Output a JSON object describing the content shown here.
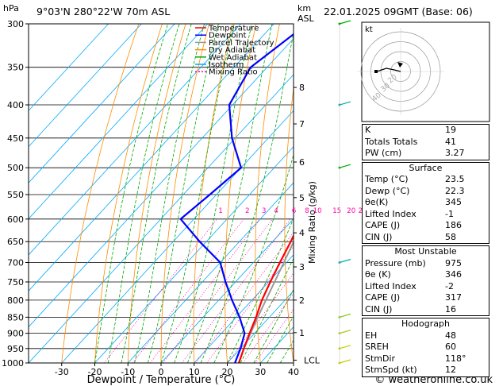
{
  "header": {
    "hpa_label": "hPa",
    "location": "9°03'N  280°22'W  70m  ASL",
    "km_label": "km",
    "asl_label": "ASL",
    "datetime": "22.01.2025  09GMT  (Base: 06)"
  },
  "legend": {
    "items": [
      {
        "label": "Temperature",
        "color": "#ff0000",
        "style": "solid"
      },
      {
        "label": "Dewpoint",
        "color": "#0000ff",
        "style": "solid"
      },
      {
        "label": "Parcel Trajectory",
        "color": "#999999",
        "style": "solid"
      },
      {
        "label": "Dry Adiabat",
        "color": "#ff8c00",
        "style": "solid"
      },
      {
        "label": "Wet Adiabat",
        "color": "#00aa00",
        "style": "solid"
      },
      {
        "label": "Isotherm",
        "color": "#00aaff",
        "style": "solid"
      },
      {
        "label": "Mixing Ratio",
        "color": "#ff00aa",
        "style": "dotted"
      }
    ]
  },
  "chart_data": {
    "type": "line",
    "xlabel": "Dewpoint / Temperature (°C)",
    "ylabel_right": "Mixing Ratio (g/kg)",
    "pressure_ticks": [
      300,
      350,
      400,
      450,
      500,
      550,
      600,
      650,
      700,
      750,
      800,
      850,
      900,
      950,
      1000
    ],
    "temp_ticks": [
      -30,
      -20,
      -10,
      0,
      10,
      20,
      30,
      40
    ],
    "xlim": [
      -40,
      40
    ],
    "ylim": [
      1000,
      300
    ],
    "km_ticks": [
      {
        "label": "8",
        "p": 376
      },
      {
        "label": "7",
        "p": 428
      },
      {
        "label": "6",
        "p": 490
      },
      {
        "label": "5",
        "p": 556
      },
      {
        "label": "4",
        "p": 630
      },
      {
        "label": "3",
        "p": 711
      },
      {
        "label": "2",
        "p": 800
      },
      {
        "label": "1",
        "p": 898
      },
      {
        "label": "LCL",
        "p": 990
      }
    ],
    "mixing_ratio_labels": [
      "1",
      "2",
      "3",
      "4",
      "6",
      "8",
      "10",
      "15",
      "20",
      "25"
    ],
    "mixing_ratio_values": [
      1,
      2,
      3,
      4,
      6,
      8,
      10,
      15,
      20,
      25
    ],
    "mixing_ratio_label_p": 590,
    "series": [
      {
        "name": "Temperature",
        "color": "#ff0000",
        "points": [
          [
            1000,
            23.5
          ],
          [
            950,
            21.0
          ],
          [
            900,
            18.5
          ],
          [
            850,
            16.0
          ],
          [
            800,
            13.0
          ],
          [
            750,
            10.5
          ],
          [
            700,
            8.0
          ],
          [
            650,
            5.5
          ],
          [
            600,
            2.5
          ],
          [
            550,
            -2.5
          ],
          [
            500,
            -7.5
          ],
          [
            450,
            -14.0
          ],
          [
            400,
            -20.0
          ],
          [
            370,
            -24.0
          ]
        ]
      },
      {
        "name": "Dewpoint",
        "color": "#0000ff",
        "points": [
          [
            1000,
            22.3
          ],
          [
            950,
            20.0
          ],
          [
            900,
            17.0
          ],
          [
            850,
            11.0
          ],
          [
            800,
            4.0
          ],
          [
            750,
            -3.0
          ],
          [
            700,
            -10.0
          ],
          [
            650,
            -22.0
          ],
          [
            600,
            -34.0
          ],
          [
            550,
            -32.0
          ],
          [
            500,
            -30.0
          ],
          [
            450,
            -41.0
          ],
          [
            400,
            -51.0
          ],
          [
            350,
            -55.0
          ],
          [
            300,
            -50.0
          ]
        ]
      },
      {
        "name": "Parcel Trajectory",
        "color": "#999999",
        "points": [
          [
            1000,
            23.5
          ],
          [
            950,
            21.0
          ],
          [
            900,
            18.8
          ],
          [
            850,
            16.5
          ],
          [
            800,
            14.2
          ],
          [
            750,
            11.8
          ],
          [
            700,
            9.2
          ],
          [
            650,
            6.4
          ],
          [
            600,
            3.4
          ],
          [
            550,
            0.0
          ],
          [
            500,
            -4.2
          ],
          [
            450,
            -9.3
          ],
          [
            400,
            -15.5
          ],
          [
            370,
            -19.5
          ]
        ]
      }
    ]
  },
  "hodograph": {
    "label": "kt",
    "ring_labels": [
      "20",
      "30",
      "40"
    ],
    "colors": {
      "line": "#000000",
      "ring": "#999999"
    }
  },
  "indices": {
    "top": [
      {
        "label": "K",
        "value": "19"
      },
      {
        "label": "Totals Totals",
        "value": "41"
      },
      {
        "label": "PW (cm)",
        "value": "3.27"
      }
    ],
    "surface": {
      "title": "Surface",
      "rows": [
        {
          "label": "Temp (°C)",
          "value": "23.5"
        },
        {
          "label": "Dewp (°C)",
          "value": "22.3"
        },
        {
          "label": "θe(K)",
          "value": "345"
        },
        {
          "label": "Lifted Index",
          "value": "-1"
        },
        {
          "label": "CAPE (J)",
          "value": "186"
        },
        {
          "label": "CIN (J)",
          "value": "58"
        }
      ]
    },
    "most_unstable": {
      "title": "Most Unstable",
      "rows": [
        {
          "label": "Pressure (mb)",
          "value": "975"
        },
        {
          "label": "θe (K)",
          "value": "346"
        },
        {
          "label": "Lifted Index",
          "value": "-2"
        },
        {
          "label": "CAPE (J)",
          "value": "317"
        },
        {
          "label": "CIN (J)",
          "value": "16"
        }
      ]
    },
    "hodograph_params": {
      "title": "Hodograph",
      "rows": [
        {
          "label": "EH",
          "value": "48"
        },
        {
          "label": "SREH",
          "value": "60"
        },
        {
          "label": "StmDir",
          "value": "118°"
        },
        {
          "label": "StmSpd (kt)",
          "value": "12"
        }
      ]
    }
  },
  "footer": {
    "copyright": "© weatheronline.co.uk"
  }
}
